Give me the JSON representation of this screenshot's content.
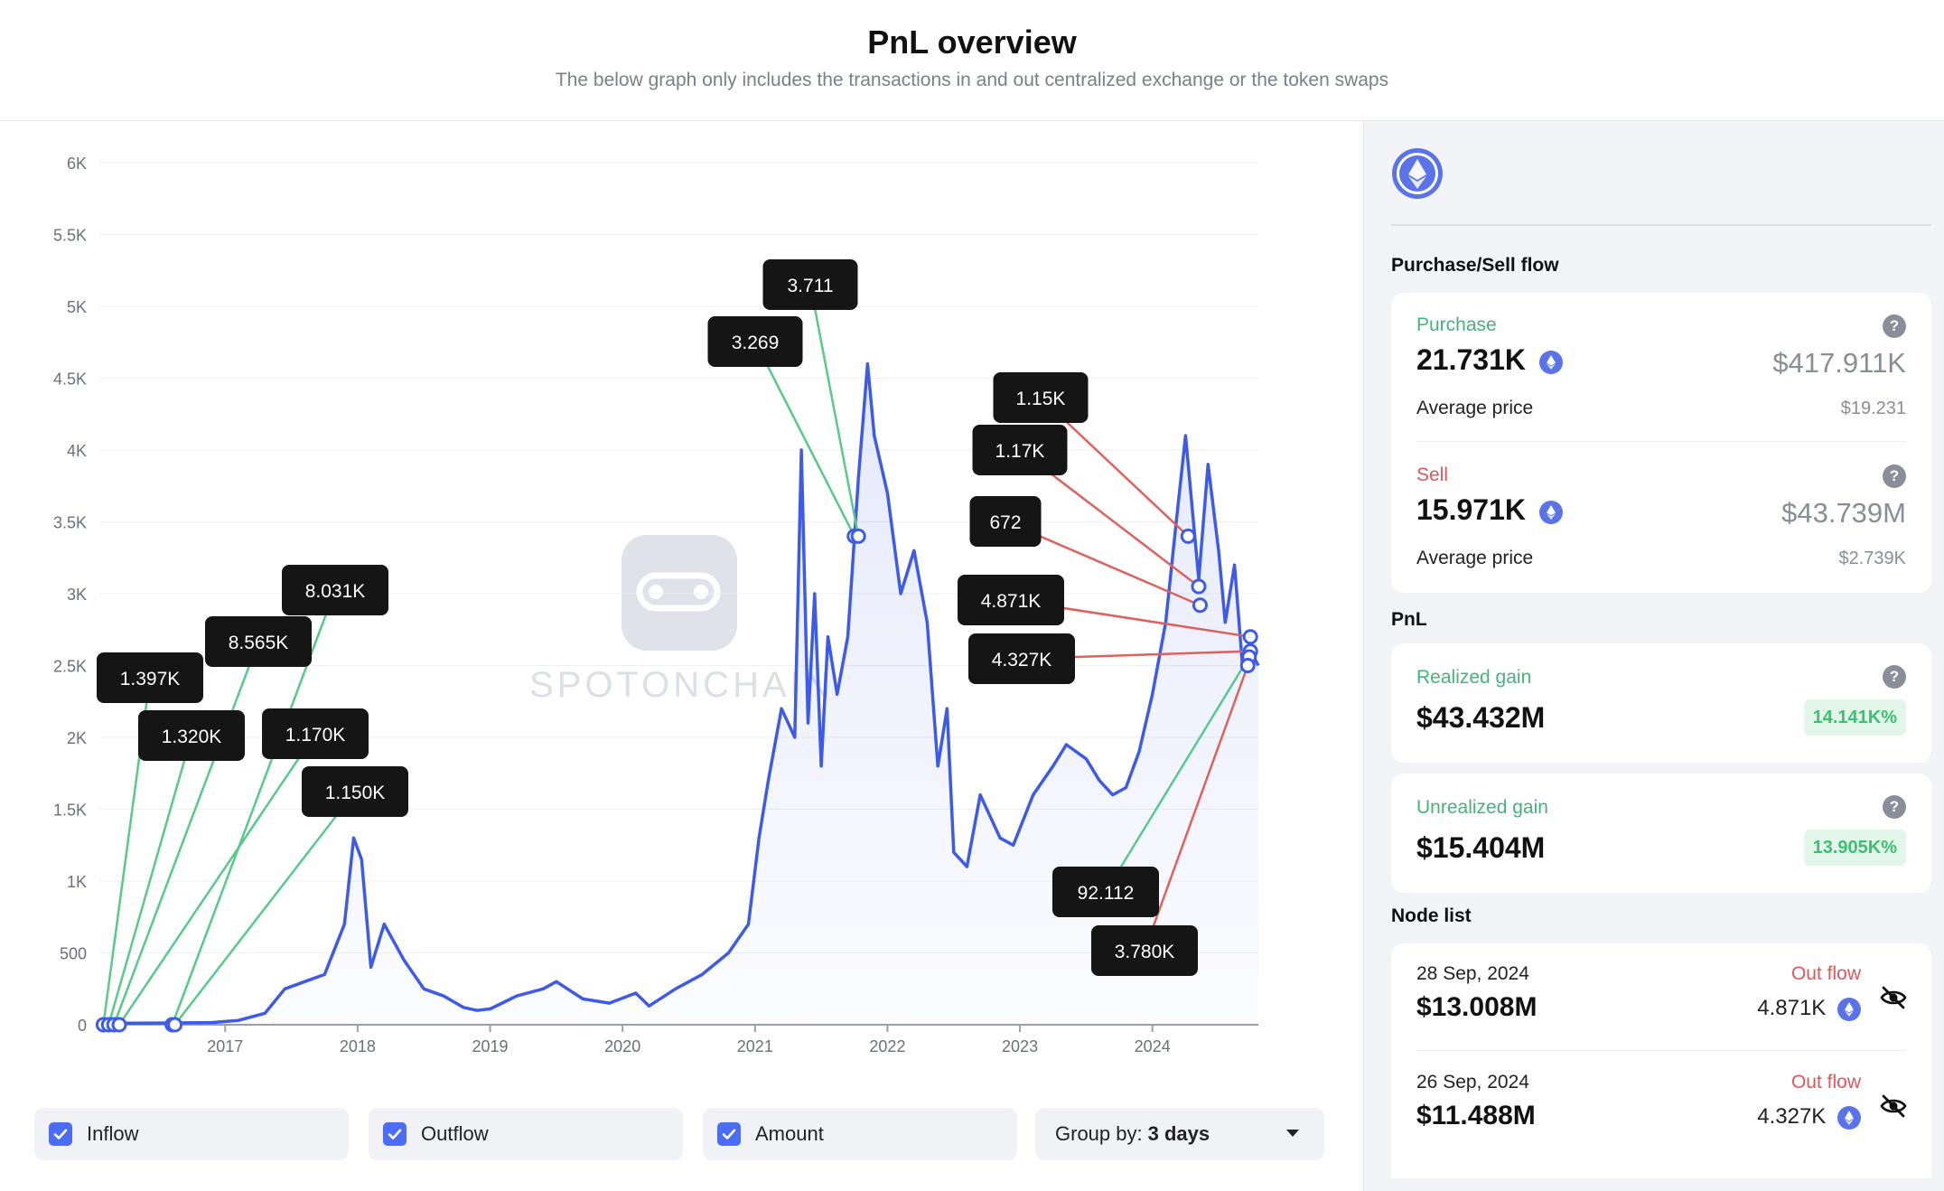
{
  "header": {
    "title": "PnL overview",
    "subtitle": "The below graph only includes the transactions in and out centralized exchange or the token swaps"
  },
  "watermark": "SPOTONCHAIN",
  "chart_data": {
    "type": "area",
    "y_ticks": [
      "0",
      "500",
      "1K",
      "1.5K",
      "2K",
      "2.5K",
      "3K",
      "3.5K",
      "4K",
      "4.5K",
      "5K",
      "5.5K",
      "6K"
    ],
    "ylim": [
      0,
      6000
    ],
    "x_ticks": [
      "2017",
      "2018",
      "2019",
      "2020",
      "2021",
      "2022",
      "2023",
      "2024"
    ],
    "xlim": [
      2016.05,
      2024.8
    ],
    "series": [
      {
        "color": "#3d5be8",
        "x": [
          2016.1,
          2016.5,
          2016.9,
          2017.1,
          2017.3,
          2017.45,
          2017.6,
          2017.75,
          2017.9,
          2017.97,
          2018.03,
          2018.1,
          2018.2,
          2018.35,
          2018.5,
          2018.65,
          2018.8,
          2018.9,
          2019.0,
          2019.2,
          2019.4,
          2019.5,
          2019.7,
          2019.9,
          2020.1,
          2020.2,
          2020.4,
          2020.6,
          2020.8,
          2020.95,
          2021.03,
          2021.1,
          2021.2,
          2021.3,
          2021.35,
          2021.4,
          2021.45,
          2021.5,
          2021.55,
          2021.62,
          2021.7,
          2021.78,
          2021.85,
          2021.9,
          2021.95,
          2022.0,
          2022.1,
          2022.2,
          2022.3,
          2022.38,
          2022.45,
          2022.5,
          2022.6,
          2022.7,
          2022.85,
          2022.95,
          2023.1,
          2023.25,
          2023.35,
          2023.5,
          2023.6,
          2023.7,
          2023.8,
          2023.9,
          2024.0,
          2024.1,
          2024.18,
          2024.25,
          2024.35,
          2024.42,
          2024.5,
          2024.55,
          2024.62,
          2024.68,
          2024.74,
          2024.8
        ],
        "y": [
          10,
          12,
          15,
          30,
          80,
          250,
          300,
          350,
          700,
          1300,
          1150,
          400,
          700,
          450,
          250,
          200,
          120,
          100,
          110,
          200,
          250,
          300,
          180,
          150,
          220,
          130,
          250,
          350,
          500,
          700,
          1300,
          1700,
          2200,
          2000,
          4000,
          2100,
          3000,
          1800,
          2700,
          2300,
          2700,
          3800,
          4600,
          4100,
          3900,
          3700,
          3000,
          3300,
          2800,
          1800,
          2200,
          1200,
          1100,
          1600,
          1300,
          1250,
          1600,
          1800,
          1950,
          1850,
          1700,
          1600,
          1650,
          1900,
          2300,
          2800,
          3500,
          4100,
          3100,
          3900,
          3300,
          2800,
          3200,
          2500,
          2600,
          2500
        ]
      }
    ],
    "annotations": [
      {
        "label": "1.397K",
        "type": "inflow",
        "x": 2016.08,
        "y": 0
      },
      {
        "label": "1.320K",
        "type": "inflow",
        "x": 2016.12,
        "y": 0
      },
      {
        "label": "8.565K",
        "type": "inflow",
        "x": 2016.16,
        "y": 0
      },
      {
        "label": "1.170K",
        "type": "inflow",
        "x": 2016.2,
        "y": 0
      },
      {
        "label": "8.031K",
        "type": "inflow",
        "x": 2016.6,
        "y": 0
      },
      {
        "label": "1.150K",
        "type": "inflow",
        "x": 2016.62,
        "y": 0
      },
      {
        "label": "3.269",
        "type": "inflow",
        "x": 2021.75,
        "y": 3400
      },
      {
        "label": "3.711",
        "type": "inflow",
        "x": 2021.78,
        "y": 3400
      },
      {
        "label": "1.15K",
        "type": "outflow",
        "x": 2024.27,
        "y": 3400
      },
      {
        "label": "1.17K",
        "type": "outflow",
        "x": 2024.35,
        "y": 3050
      },
      {
        "label": "672",
        "type": "outflow",
        "x": 2024.36,
        "y": 2920
      },
      {
        "label": "4.871K",
        "type": "outflow",
        "x": 2024.74,
        "y": 2700
      },
      {
        "label": "4.327K",
        "type": "outflow",
        "x": 2024.74,
        "y": 2600
      },
      {
        "label": "92.112",
        "type": "inflow",
        "x": 2024.73,
        "y": 2560
      },
      {
        "label": "3.780K",
        "type": "outflow",
        "x": 2024.72,
        "y": 2500
      }
    ],
    "colors": {
      "inflow": "#58c98a",
      "outflow": "#e0605c",
      "line": "#3d5be8"
    }
  },
  "controls": {
    "inflow_label": "Inflow",
    "outflow_label": "Outflow",
    "amount_label": "Amount",
    "group_by_label": "Group by:",
    "group_by_value": "3 days"
  },
  "sidebar": {
    "flow_title": "Purchase/Sell flow",
    "purchase": {
      "label": "Purchase",
      "amount": "21.731K",
      "usd": "$417.911K",
      "avg_label": "Average price",
      "avg_value": "$19.231"
    },
    "sell": {
      "label": "Sell",
      "amount": "15.971K",
      "usd": "$43.739M",
      "avg_label": "Average price",
      "avg_value": "$2.739K"
    },
    "pnl_title": "PnL",
    "realized": {
      "label": "Realized gain",
      "value": "$43.432M",
      "pct": "14.141K%"
    },
    "unrealized": {
      "label": "Unrealized gain",
      "value": "$15.404M",
      "pct": "13.905K%"
    },
    "node_title": "Node list",
    "nodes": [
      {
        "date": "28 Sep, 2024",
        "value": "$13.008M",
        "flow": "Out flow",
        "amount": "4.871K"
      },
      {
        "date": "26 Sep, 2024",
        "value": "$11.488M",
        "flow": "Out flow",
        "amount": "4.327K"
      }
    ]
  }
}
